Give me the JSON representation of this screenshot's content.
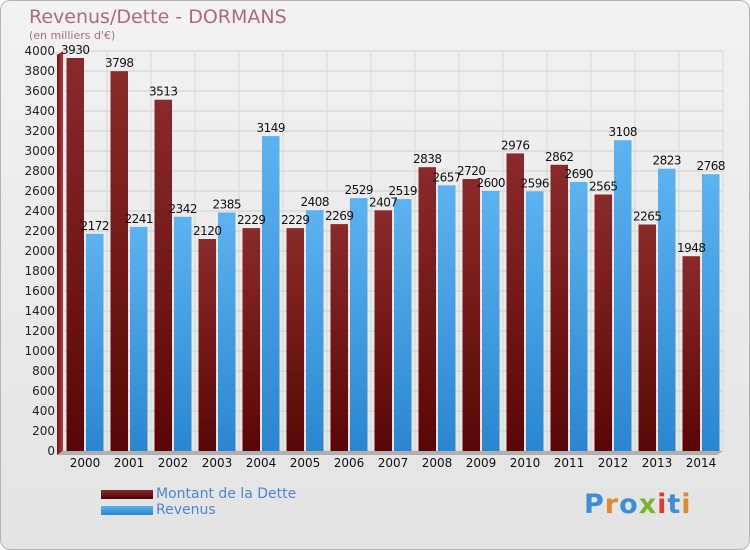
{
  "title": "Revenus/Dette - DORMANS",
  "subtitle": "(en milliers d'€)",
  "logo": {
    "text": "Proxiti",
    "colors": [
      "#3b8fd6",
      "#e08a2a",
      "#3b8fd6",
      "#7ab42e",
      "#e03a2a",
      "#3b8fd6",
      "#e08a2a"
    ]
  },
  "colors": {
    "dette": "#7b1a1a",
    "revenus": "#3a9ee8"
  },
  "legend": [
    {
      "label": "Montant de la Dette",
      "color": "#6b1515"
    },
    {
      "label": "Revenus",
      "color": "#3a9ee8"
    }
  ],
  "chart_data": {
    "type": "bar",
    "categories": [
      "2000",
      "2001",
      "2002",
      "2003",
      "2004",
      "2005",
      "2006",
      "2007",
      "2008",
      "2009",
      "2010",
      "2011",
      "2012",
      "2013",
      "2014"
    ],
    "series": [
      {
        "name": "Montant de la Dette",
        "values": [
          3930,
          3798,
          3513,
          2120,
          2229,
          2229,
          2269,
          2407,
          2838,
          2720,
          2976,
          2862,
          2565,
          2265,
          1948
        ],
        "labels": [
          "3930",
          "3798",
          "3513",
          "2120",
          "2229",
          "2229",
          "2269",
          "2407",
          "2838",
          "2720",
          "2976",
          "2862",
          "2565",
          "2265",
          "1948"
        ]
      },
      {
        "name": "Revenus",
        "values": [
          2172,
          2241,
          2342,
          2385,
          3149,
          2408,
          2529,
          2519,
          2657,
          2600,
          2596,
          2690,
          3108,
          2823,
          2768
        ],
        "labels": [
          "2172",
          "2241",
          "2342",
          "2385",
          "3149",
          "2408",
          "2529",
          "2519",
          "2657",
          "2600",
          "2596",
          "2690",
          "3108",
          "2823",
          "2768"
        ]
      }
    ],
    "ylim": [
      0,
      4000
    ],
    "ytick_step": 200,
    "grid": true
  }
}
